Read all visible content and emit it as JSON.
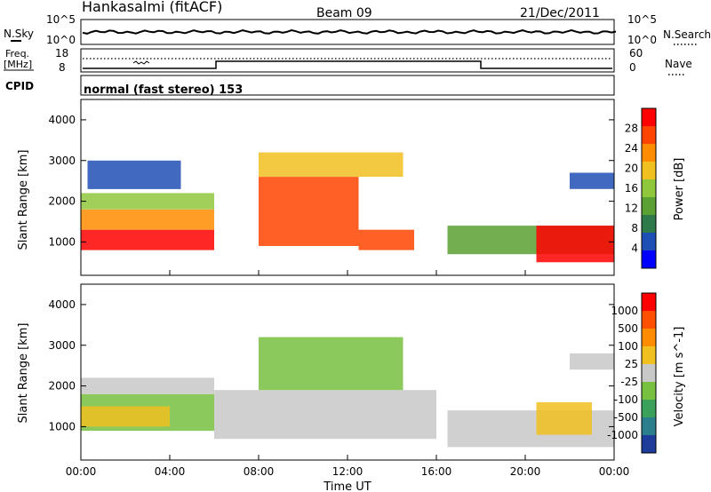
{
  "header": {
    "station": "Hankasalmi (fitACF)",
    "beam": "Beam 09",
    "date": "21/Dec/2011"
  },
  "noise_panel": {
    "left_label": "N.Sky",
    "right_label": "N.Search",
    "tick_top_left": "10^5",
    "tick_bottom_left": "10^0",
    "tick_top_right": "10^5",
    "tick_bottom_right": "10^0"
  },
  "freq_panel": {
    "left_label_1": "Freq.",
    "left_label_2": "[MHz]",
    "right_label": "Nave",
    "freq_ticks": [
      "18",
      "8"
    ],
    "nave_ticks": [
      "60",
      "0"
    ]
  },
  "cpid": {
    "label": "CPID",
    "mode": "normal (fast stereo) 153"
  },
  "axes": {
    "ylabel": "Slant Range [km]",
    "xlabel": "Time UT",
    "y_ticks": [
      "4000",
      "3000",
      "2000",
      "1000"
    ],
    "x_ticks": [
      "00:00",
      "04:00",
      "08:00",
      "12:00",
      "16:00",
      "20:00",
      "00:00"
    ]
  },
  "colorbars": {
    "power": {
      "label": "Power [dB]",
      "ticks": [
        "28",
        "24",
        "20",
        "16",
        "12",
        "8",
        "4"
      ],
      "colors": [
        "#0000ff",
        "#1e4fb4",
        "#2f7a4a",
        "#5aa032",
        "#8fc83c",
        "#f0c020",
        "#ff8c00",
        "#ff4400",
        "#ff0000"
      ]
    },
    "velocity": {
      "label": "Velocity [m s^-1]",
      "ticks": [
        "1000",
        "500",
        "100",
        "25",
        "-25",
        "-100",
        "-500",
        "-1000"
      ],
      "colors": [
        "#1e3c9a",
        "#2b7f8c",
        "#3aa05a",
        "#78c040",
        "#c8c8c8",
        "#f0c020",
        "#ff8c00",
        "#ff5000",
        "#ff0000"
      ]
    }
  },
  "chart_data": [
    {
      "type": "heatmap",
      "title": "Power",
      "xlabel": "Time UT",
      "ylabel": "Slant Range [km]",
      "xlim": [
        0,
        24
      ],
      "ylim": [
        180,
        4500
      ],
      "colorbar_range": [
        0,
        30
      ],
      "colorbar_unit": "dB",
      "regions": [
        {
          "t": [
            0.0,
            6.0
          ],
          "r": [
            800,
            1300
          ],
          "level": 28
        },
        {
          "t": [
            0.0,
            6.0
          ],
          "r": [
            1300,
            1800
          ],
          "level": 20
        },
        {
          "t": [
            0.0,
            6.0
          ],
          "r": [
            1800,
            2200
          ],
          "level": 14
        },
        {
          "t": [
            0.3,
            4.5
          ],
          "r": [
            2300,
            3000
          ],
          "level": 6
        },
        {
          "t": [
            8.0,
            12.5
          ],
          "r": [
            900,
            2600
          ],
          "level": 26
        },
        {
          "t": [
            8.0,
            14.5
          ],
          "r": [
            2600,
            3200
          ],
          "level": 18
        },
        {
          "t": [
            12.5,
            15.0
          ],
          "r": [
            800,
            1300
          ],
          "level": 24
        },
        {
          "t": [
            16.5,
            24.0
          ],
          "r": [
            700,
            1400
          ],
          "level": 12
        },
        {
          "t": [
            20.5,
            24.0
          ],
          "r": [
            500,
            1400
          ],
          "level": 28
        },
        {
          "t": [
            22.0,
            24.0
          ],
          "r": [
            2300,
            2700
          ],
          "level": 6
        }
      ]
    },
    {
      "type": "heatmap",
      "title": "Velocity",
      "xlabel": "Time UT",
      "ylabel": "Slant Range [km]",
      "xlim": [
        0,
        24
      ],
      "ylim": [
        180,
        4500
      ],
      "colorbar_range": [
        -1000,
        1000
      ],
      "colorbar_unit": "m s^-1",
      "regions": [
        {
          "t": [
            0.0,
            6.0
          ],
          "r": [
            1800,
            2200
          ],
          "level": 0
        },
        {
          "t": [
            0.0,
            6.0
          ],
          "r": [
            900,
            1800
          ],
          "level": -150
        },
        {
          "t": [
            0.0,
            4.0
          ],
          "r": [
            1000,
            1500
          ],
          "level": 120
        },
        {
          "t": [
            6.0,
            16.0
          ],
          "r": [
            700,
            1900
          ],
          "level": 0
        },
        {
          "t": [
            8.0,
            14.5
          ],
          "r": [
            1900,
            3200
          ],
          "level": -200
        },
        {
          "t": [
            16.5,
            24.0
          ],
          "r": [
            500,
            1400
          ],
          "level": 0
        },
        {
          "t": [
            20.5,
            23.0
          ],
          "r": [
            800,
            1600
          ],
          "level": 300
        },
        {
          "t": [
            22.0,
            24.0
          ],
          "r": [
            2400,
            2800
          ],
          "level": 0
        }
      ]
    }
  ]
}
